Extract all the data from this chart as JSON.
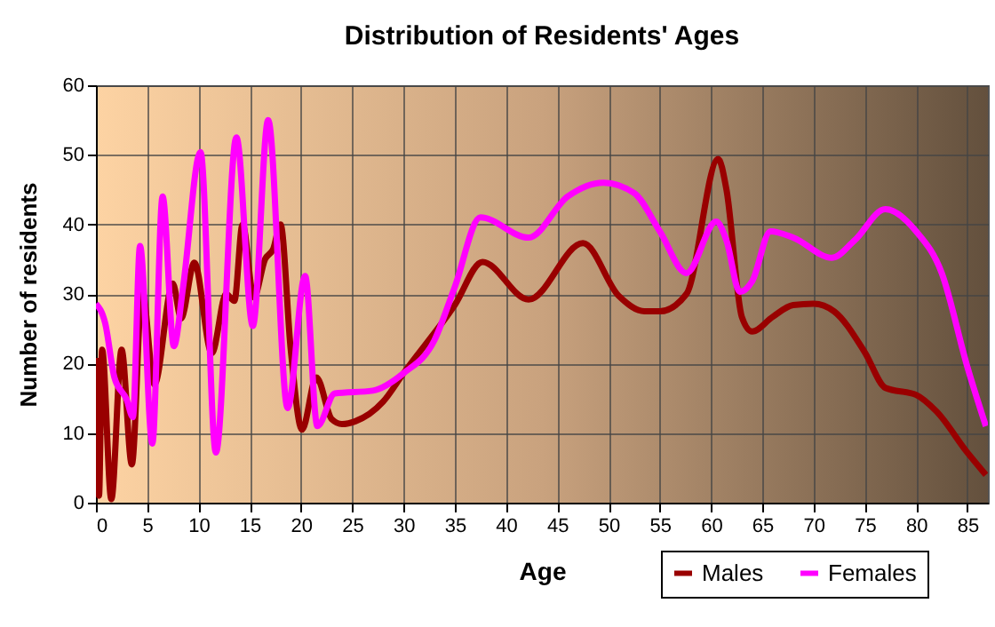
{
  "chart_data": {
    "type": "line",
    "title": "Distribution of Residents' Ages",
    "xlabel": "Age",
    "ylabel": "Number of residents",
    "series": [
      {
        "name": "Males",
        "color": "#990000",
        "x": [
          0,
          0.3,
          0.6,
          1.5,
          2.5,
          3.5,
          4.5,
          5.7,
          7.5,
          8.3,
          9.6,
          11.3,
          12.7,
          13.5,
          14.3,
          15.4,
          16.5,
          17.3,
          18,
          19,
          20.1,
          21.5,
          23,
          24,
          25.3,
          28,
          30,
          35,
          37.7,
          42.2,
          47.5,
          51,
          53.5,
          55,
          57.6,
          60.7,
          61.5,
          63,
          64,
          66,
          68,
          70,
          72,
          75,
          77,
          80,
          82,
          85,
          86.8
        ],
        "values": [
          20.8,
          1,
          22,
          0.5,
          22,
          5.5,
          30.5,
          17,
          31.5,
          26.5,
          34.5,
          21.5,
          30,
          29,
          40,
          29.5,
          35,
          36.5,
          40,
          22,
          10.5,
          18,
          12,
          11.3,
          11.7,
          14.5,
          18.6,
          28.4,
          34.6,
          29.2,
          37.3,
          29.7,
          27.5,
          27.5,
          30,
          49.4,
          45,
          26.7,
          24.6,
          26.7,
          28.4,
          28.6,
          27.5,
          21.6,
          16.5,
          15.5,
          13.1,
          7.2,
          4
        ]
      },
      {
        "name": "Females",
        "color": "#ff00ff",
        "x": [
          0,
          0.9,
          1.8,
          3,
          3.6,
          4.3,
          5.5,
          6.5,
          7.6,
          8.5,
          10.2,
          11.7,
          13.7,
          15.3,
          16.8,
          18.7,
          20.4,
          21.6,
          23.3,
          27,
          30,
          33,
          35,
          37.5,
          42.2,
          46,
          49.5,
          52.5,
          55,
          57.6,
          60.5,
          61.5,
          62.8,
          64,
          65.8,
          68,
          71.8,
          74,
          77,
          80,
          82.5,
          85,
          86.8
        ],
        "values": [
          28.6,
          25.8,
          18,
          14.8,
          12.3,
          36.9,
          8.5,
          44,
          22.5,
          31,
          50.4,
          7.2,
          52.5,
          25.4,
          55,
          13.6,
          32.6,
          11,
          15.7,
          16.1,
          18.6,
          23.3,
          31,
          41,
          38.1,
          44,
          46,
          44.5,
          39,
          33,
          40.4,
          37.7,
          30.3,
          31.8,
          39,
          38.1,
          35.2,
          37.7,
          42.2,
          39,
          33,
          19.5,
          11
        ]
      }
    ],
    "xlim": [
      0,
      87
    ],
    "xticks": [
      0,
      5,
      10,
      15,
      20,
      25,
      30,
      35,
      40,
      45,
      50,
      55,
      60,
      65,
      70,
      75,
      80,
      85
    ],
    "ylim": [
      0,
      60
    ],
    "yticks": [
      0,
      10,
      20,
      30,
      40,
      50,
      60
    ],
    "grid": true,
    "legend": "bottom right",
    "line_style": "solid"
  }
}
